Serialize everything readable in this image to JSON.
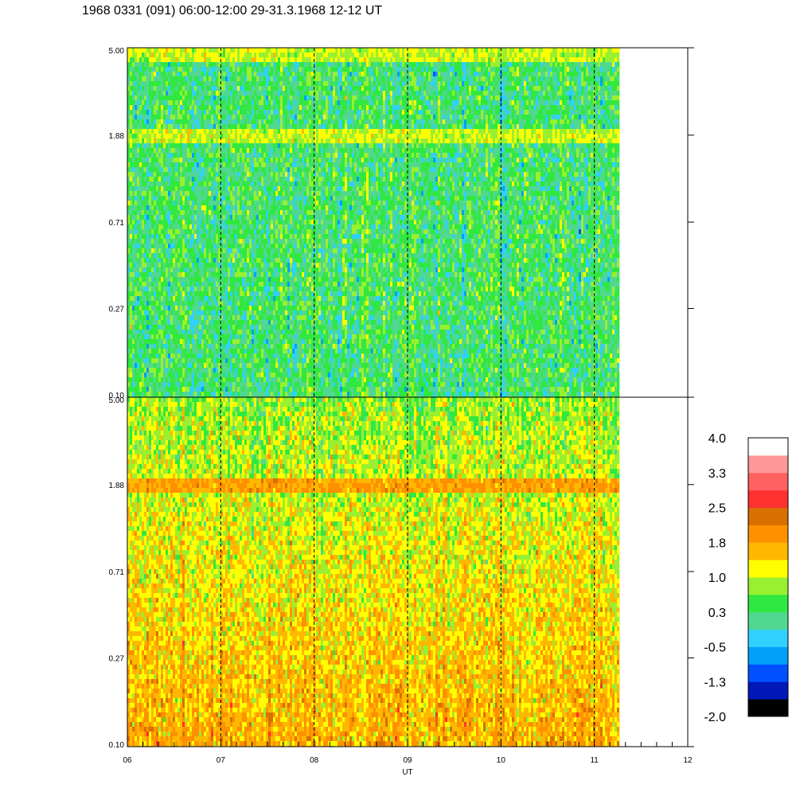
{
  "title": "1968 0331 (091) 06:00-12:00 29-31.3.1968  12-12 UT",
  "chart_data": {
    "type": "heatmap",
    "title": "1968 0331 (091) 06:00-12:00 29-31.3.1968  12-12 UT",
    "xlabel": "UT",
    "x_ticks": [
      "06",
      "07",
      "08",
      "09",
      "10",
      "11",
      "12"
    ],
    "x_range": [
      6,
      12
    ],
    "data_end_ut": 11.27,
    "panels": [
      {
        "name": "top",
        "y_ticks": [
          "5.00",
          "1.88",
          "0.71",
          "0.27",
          "0.10"
        ],
        "y_range": [
          0.1,
          5.0
        ],
        "y_scale": "log",
        "dominant_level": 0.3,
        "bright_band_freqs": [
          4.7,
          1.88
        ],
        "bright_band_level": 1.0
      },
      {
        "name": "bottom",
        "y_ticks": [
          "5.00",
          "1.88",
          "0.71",
          "0.27",
          "0.10"
        ],
        "y_range": [
          0.1,
          5.0
        ],
        "y_scale": "log",
        "dominant_level": 1.4,
        "bright_band_freqs": [
          1.88
        ],
        "bright_band_level": 1.8
      }
    ],
    "dashed_lines_ut": [
      7,
      8,
      9,
      10,
      11
    ],
    "colorbar": {
      "labels": [
        "4.0",
        "3.3",
        "2.5",
        "1.8",
        "1.0",
        "0.3",
        "-0.5",
        "-1.3",
        "-2.0"
      ],
      "range": [
        -2.0,
        4.0
      ],
      "colors": [
        "#000000",
        "#0018b8",
        "#0050ff",
        "#00a0f8",
        "#30d0ff",
        "#50d890",
        "#30e840",
        "#98f030",
        "#ffff00",
        "#ffb800",
        "#ff9000",
        "#d87000",
        "#ff3030",
        "#ff6060",
        "#ff9898",
        "#ffffff"
      ]
    }
  }
}
